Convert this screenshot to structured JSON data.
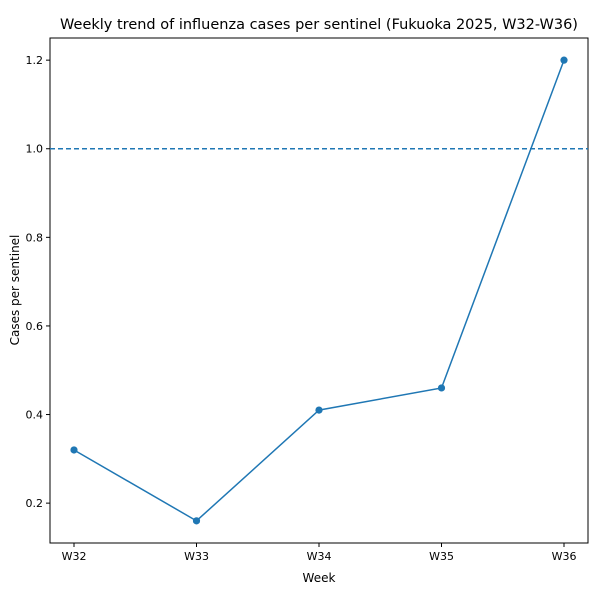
{
  "chart_data": {
    "type": "line",
    "title": "Weekly trend of influenza cases per sentinel (Fukuoka 2025, W32-W36)",
    "xlabel": "Week",
    "ylabel": "Cases per sentinel",
    "categories": [
      "W32",
      "W33",
      "W34",
      "W35",
      "W36"
    ],
    "series": [
      {
        "values": [
          0.32,
          0.16,
          0.41,
          0.46,
          1.2
        ],
        "color": "#1f77b4",
        "marker": "circle"
      }
    ],
    "reference_lines": [
      {
        "axis": "y",
        "value": 1.0,
        "style": "dashed",
        "color": "#1f77b4"
      }
    ],
    "ylim": [
      0.11,
      1.25
    ],
    "yticks": [
      0.2,
      0.4,
      0.6,
      0.8,
      1.0,
      1.2
    ],
    "ytick_labels": [
      "0.2",
      "0.4",
      "0.6",
      "0.8",
      "1.0",
      "1.2"
    ],
    "grid": false,
    "legend": "none"
  }
}
